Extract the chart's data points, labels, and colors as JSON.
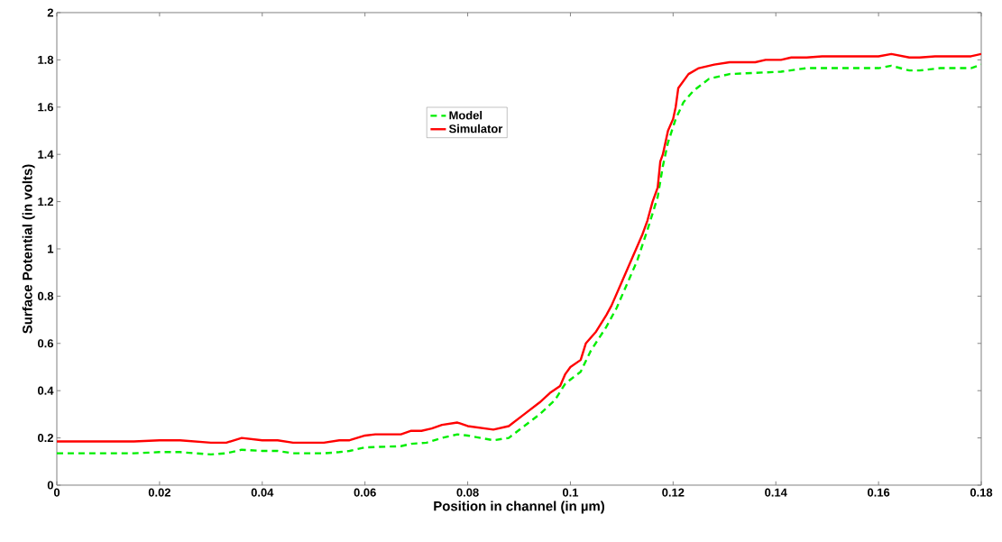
{
  "chart_data": {
    "type": "line",
    "xlabel": "Position in channel (in µm)",
    "ylabel": "Surface Potential (in volts)",
    "x": [
      0,
      0.015,
      0.02,
      0.024,
      0.03,
      0.033,
      0.036,
      0.04,
      0.043,
      0.046,
      0.052,
      0.055,
      0.057,
      0.06,
      0.062,
      0.067,
      0.069,
      0.071,
      0.073,
      0.075,
      0.078,
      0.08,
      0.085,
      0.088,
      0.091,
      0.094,
      0.096,
      0.098,
      0.099,
      0.1,
      0.102,
      0.103,
      0.105,
      0.107,
      0.108,
      0.11,
      0.112,
      0.114,
      0.115,
      0.116,
      0.117,
      0.1175,
      0.118,
      0.119,
      0.12,
      0.1205,
      0.121,
      0.122,
      0.123,
      0.125,
      0.128,
      0.131,
      0.136,
      0.138,
      0.141,
      0.143,
      0.146,
      0.149,
      0.16,
      0.1625,
      0.166,
      0.168,
      0.171,
      0.178,
      0.18
    ],
    "series": [
      {
        "name": "Model",
        "color": "#00ee00",
        "line_style": "dashed",
        "x": [
          0,
          0.015,
          0.02,
          0.024,
          0.03,
          0.033,
          0.036,
          0.04,
          0.043,
          0.046,
          0.052,
          0.055,
          0.057,
          0.06,
          0.067,
          0.069,
          0.072,
          0.075,
          0.078,
          0.08,
          0.085,
          0.088,
          0.091,
          0.094,
          0.097,
          0.099,
          0.102,
          0.104,
          0.107,
          0.109,
          0.111,
          0.113,
          0.115,
          0.117,
          0.118,
          0.119,
          0.1205,
          0.122,
          0.124,
          0.127,
          0.131,
          0.136,
          0.141,
          0.146,
          0.16,
          0.1625,
          0.166,
          0.168,
          0.172,
          0.178,
          0.18
        ],
        "values": [
          0.135,
          0.135,
          0.14,
          0.14,
          0.13,
          0.135,
          0.15,
          0.145,
          0.145,
          0.135,
          0.135,
          0.14,
          0.145,
          0.16,
          0.165,
          0.175,
          0.18,
          0.2,
          0.215,
          0.21,
          0.19,
          0.2,
          0.25,
          0.3,
          0.36,
          0.43,
          0.48,
          0.57,
          0.67,
          0.75,
          0.85,
          0.95,
          1.08,
          1.22,
          1.35,
          1.45,
          1.55,
          1.62,
          1.67,
          1.72,
          1.74,
          1.745,
          1.75,
          1.765,
          1.765,
          1.775,
          1.755,
          1.755,
          1.765,
          1.765,
          1.78
        ]
      },
      {
        "name": "Simulator",
        "color": "#ff0000",
        "line_style": "solid",
        "values": [
          0.185,
          0.185,
          0.19,
          0.19,
          0.18,
          0.18,
          0.2,
          0.19,
          0.19,
          0.18,
          0.18,
          0.19,
          0.19,
          0.21,
          0.215,
          0.215,
          0.23,
          0.23,
          0.24,
          0.255,
          0.265,
          0.25,
          0.235,
          0.25,
          0.3,
          0.35,
          0.39,
          0.42,
          0.47,
          0.5,
          0.53,
          0.6,
          0.65,
          0.72,
          0.76,
          0.86,
          0.96,
          1.06,
          1.12,
          1.2,
          1.26,
          1.37,
          1.4,
          1.5,
          1.55,
          1.6,
          1.68,
          1.71,
          1.74,
          1.765,
          1.78,
          1.79,
          1.79,
          1.8,
          1.8,
          1.81,
          1.81,
          1.815,
          1.815,
          1.825,
          1.81,
          1.81,
          1.815,
          1.815,
          1.825
        ]
      }
    ],
    "xlim": [
      0,
      0.18
    ],
    "xticks": [
      0,
      0.02,
      0.04,
      0.06,
      0.08,
      0.1,
      0.12,
      0.14,
      0.16,
      0.18
    ],
    "ylim": [
      0,
      2
    ],
    "yticks": [
      0,
      0.2,
      0.4,
      0.6,
      0.8,
      1,
      1.2,
      1.4,
      1.6,
      1.8,
      2
    ],
    "grid": false,
    "legend": "top",
    "marker": "none"
  }
}
